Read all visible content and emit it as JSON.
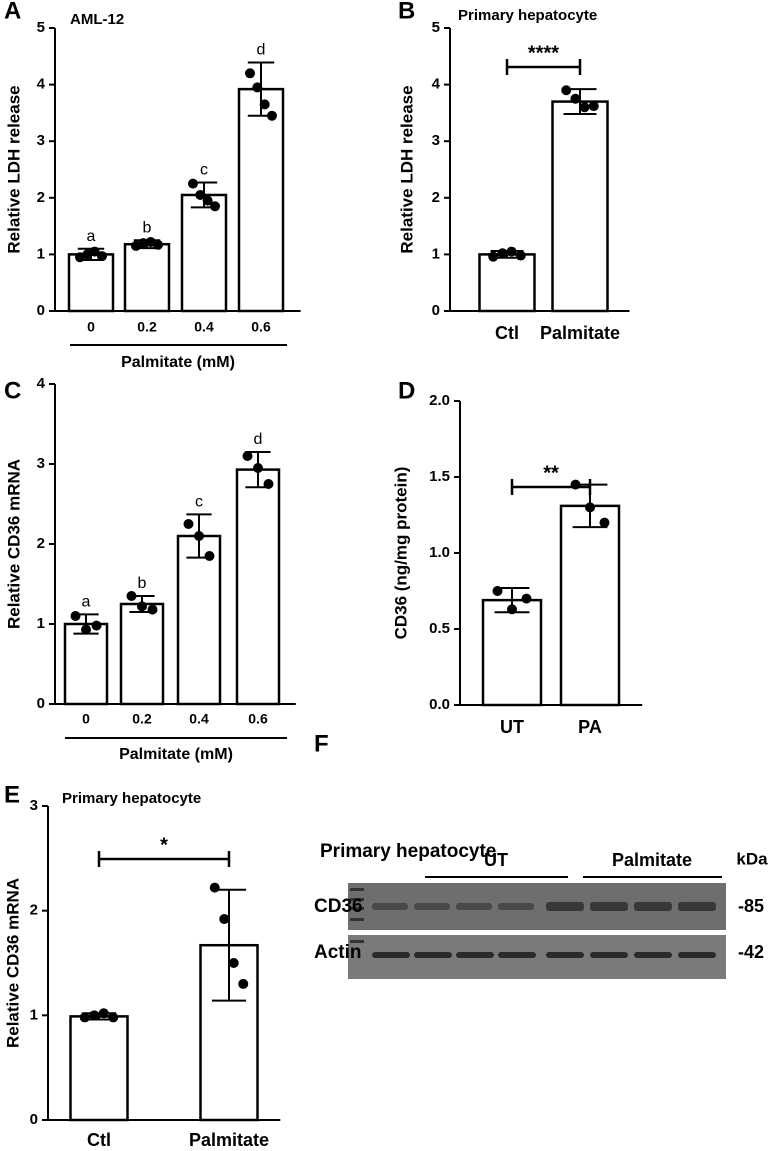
{
  "chart_data": [
    {
      "type": "bar",
      "panel_label": "A",
      "title": "AML-12",
      "y_label": "Relative LDH release",
      "x_label": "Palmitate (mM)",
      "categories": [
        "0",
        "0.2",
        "0.4",
        "0.6"
      ],
      "values": [
        1.0,
        1.18,
        2.05,
        3.92
      ],
      "errors": [
        0.1,
        0.07,
        0.22,
        0.47
      ],
      "points": [
        [
          0.95,
          1.0,
          1.05,
          0.97
        ],
        [
          1.15,
          1.2,
          1.22,
          1.17
        ],
        [
          2.25,
          2.05,
          1.95,
          1.85
        ],
        [
          4.2,
          3.95,
          3.65,
          3.45
        ]
      ],
      "group_labels": [
        "a",
        "b",
        "c",
        "d"
      ],
      "color": "#ffffff",
      "ylim": [
        0,
        5
      ],
      "yticks": [
        0,
        1,
        2,
        3,
        4,
        5
      ]
    },
    {
      "type": "bar",
      "panel_label": "B",
      "title": "Primary hepatocyte",
      "y_label": "Relative LDH release",
      "categories": [
        "Ctl",
        "Palmitate"
      ],
      "values": [
        1.0,
        3.7
      ],
      "errors": [
        0.06,
        0.22
      ],
      "points": [
        [
          0.96,
          1.02,
          1.05,
          0.98
        ],
        [
          3.9,
          3.75,
          3.6,
          3.62
        ]
      ],
      "significance": "****",
      "color": "#ffffff",
      "ylim": [
        0,
        5
      ],
      "yticks": [
        0,
        1,
        2,
        3,
        4,
        5
      ]
    },
    {
      "type": "bar",
      "panel_label": "C",
      "y_label": "Relative CD36 mRNA",
      "x_label": "Palmitate (mM)",
      "categories": [
        "0",
        "0.2",
        "0.4",
        "0.6"
      ],
      "values": [
        1.0,
        1.25,
        2.1,
        2.93
      ],
      "errors": [
        0.12,
        0.1,
        0.27,
        0.22
      ],
      "points": [
        [
          1.1,
          0.93,
          0.98
        ],
        [
          1.35,
          1.22,
          1.18
        ],
        [
          2.25,
          2.1,
          1.85
        ],
        [
          3.1,
          2.95,
          2.75
        ]
      ],
      "group_labels": [
        "a",
        "b",
        "c",
        "d"
      ],
      "color": "#ffffff",
      "ylim": [
        0,
        4
      ],
      "yticks": [
        0,
        1,
        2,
        3,
        4
      ]
    },
    {
      "type": "bar",
      "panel_label": "D",
      "y_label": "CD36 (ng/mg protein)",
      "categories": [
        "UT",
        "PA"
      ],
      "values": [
        0.69,
        1.31
      ],
      "errors": [
        0.08,
        0.14
      ],
      "points": [
        [
          0.75,
          0.63,
          0.7
        ],
        [
          1.45,
          1.3,
          1.2
        ]
      ],
      "significance": "**",
      "color": "#ffffff",
      "ylim": [
        0,
        2
      ],
      "yticks": [
        {
          "value": 0,
          "label": "0.0"
        },
        0.5,
        {
          "value": 1,
          "label": "1.0"
        },
        1.5,
        {
          "value": 2,
          "label": "2.0"
        }
      ]
    },
    {
      "type": "bar",
      "panel_label": "E",
      "title": "Primary hepatocyte",
      "y_label": "Relative CD36 mRNA",
      "categories": [
        "Ctl",
        "Palmitate"
      ],
      "values": [
        0.99,
        1.67
      ],
      "errors": [
        0.03,
        0.53
      ],
      "points": [
        [
          0.98,
          1.0,
          1.02,
          0.98
        ],
        [
          2.22,
          1.92,
          1.5,
          1.3
        ]
      ],
      "significance": "*",
      "color": "#ffffff",
      "ylim": [
        0,
        3
      ],
      "yticks": [
        0,
        1,
        2,
        3
      ]
    }
  ],
  "blot": {
    "panel_label": "F",
    "title": "Primary hepatocyte",
    "groups": [
      "UT",
      "Palmitate"
    ],
    "unit": "kDa",
    "rows": [
      {
        "label": "CD36",
        "size": "-85"
      },
      {
        "label": "Actin",
        "size": "-42"
      }
    ]
  }
}
